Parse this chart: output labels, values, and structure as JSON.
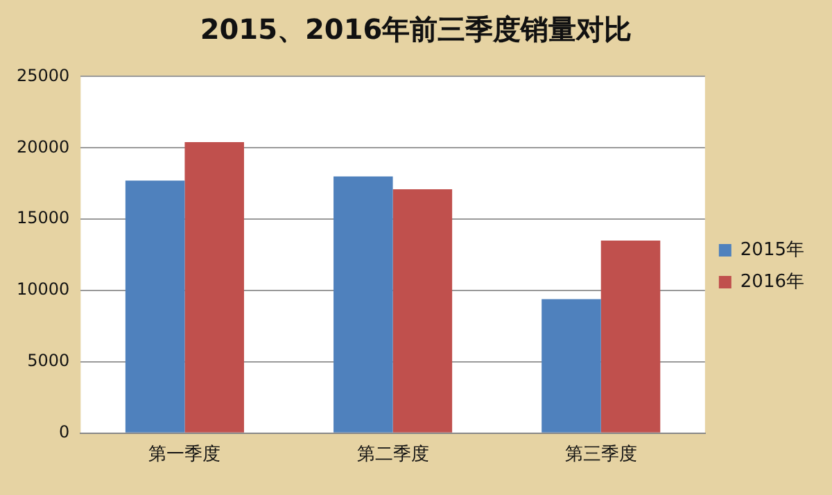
{
  "chart_data": {
    "type": "bar",
    "title": "2015、2016年前三季度销量对比",
    "categories": [
      "第一季度",
      "第二季度",
      "第三季度"
    ],
    "series": [
      {
        "name": "2015年",
        "color": "#4f81bd",
        "values": [
          17700,
          18000,
          9400
        ]
      },
      {
        "name": "2016年",
        "color": "#c0504d",
        "values": [
          20400,
          17100,
          13500
        ]
      }
    ],
    "ylim": [
      0,
      25000
    ],
    "yticks": [
      0,
      5000,
      10000,
      15000,
      20000,
      25000
    ],
    "grid": "y",
    "legend": "right"
  }
}
